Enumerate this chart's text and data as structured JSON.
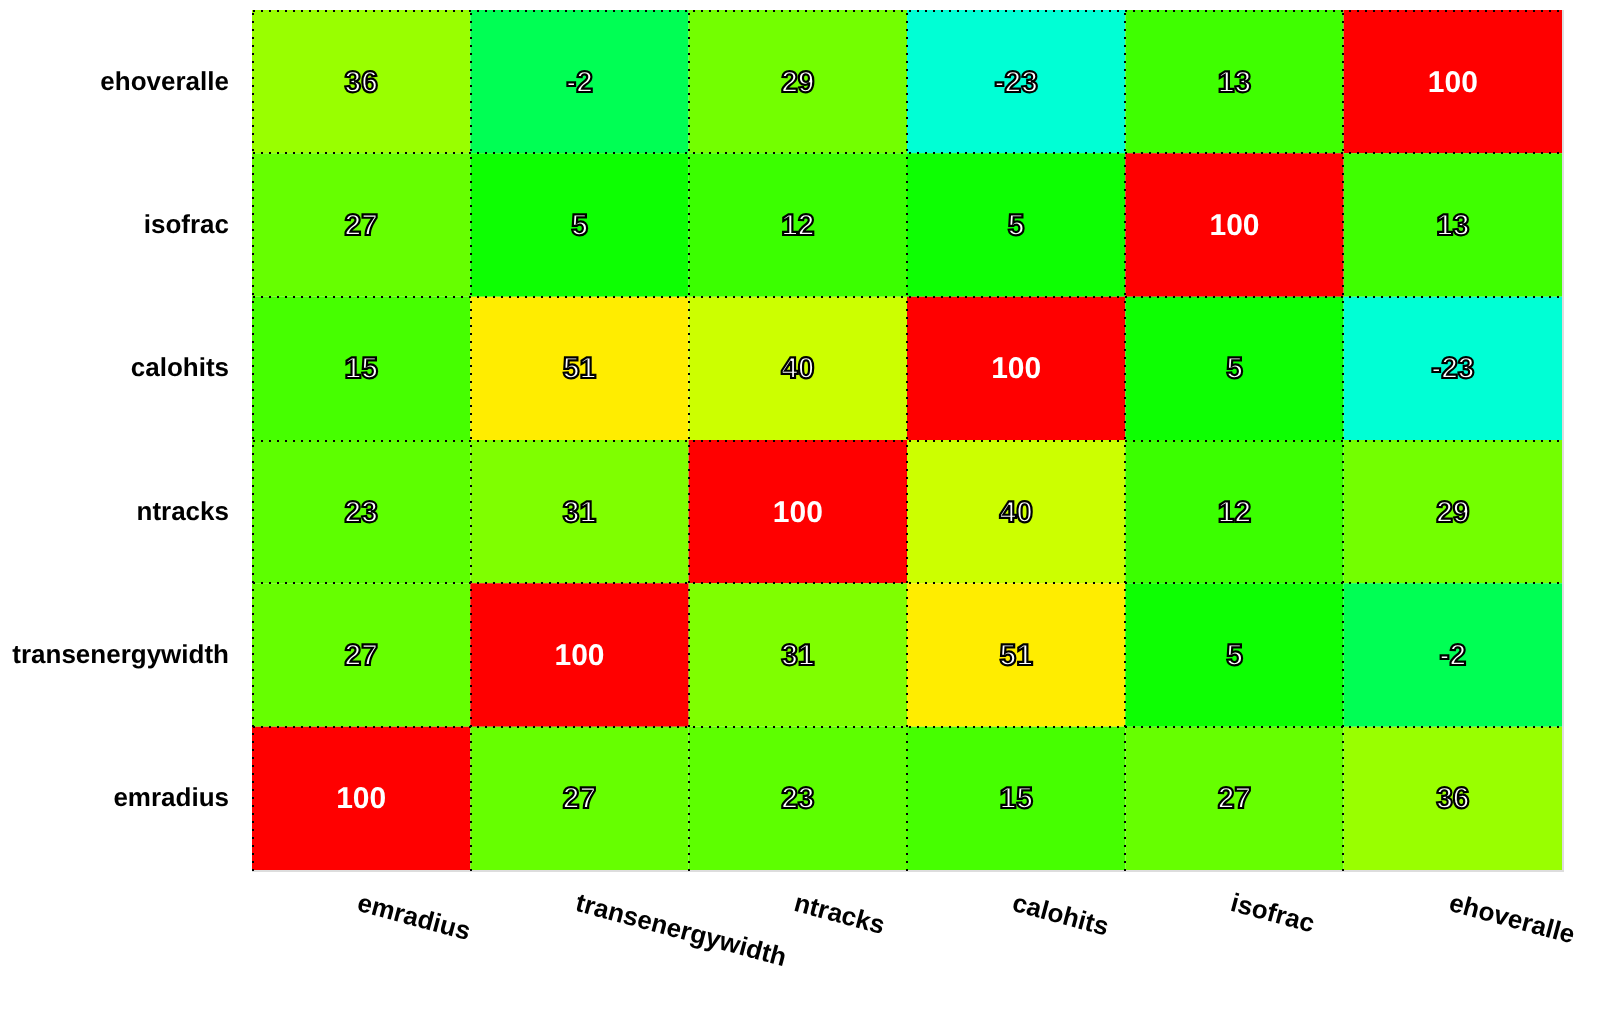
{
  "chart_data": {
    "type": "heatmap",
    "categories": [
      "emradius",
      "transenergywidth",
      "ntracks",
      "calohits",
      "isofrac",
      "ehoveralle"
    ],
    "y_categories": [
      "ehoveralle",
      "isofrac",
      "calohits",
      "ntracks",
      "transenergywidth",
      "emradius"
    ],
    "cells": [
      [
        36,
        -2,
        29,
        -23,
        13,
        100
      ],
      [
        27,
        5,
        12,
        5,
        100,
        13
      ],
      [
        15,
        51,
        40,
        100,
        5,
        -23
      ],
      [
        23,
        31,
        100,
        40,
        12,
        29
      ],
      [
        27,
        100,
        31,
        51,
        5,
        -2
      ],
      [
        100,
        27,
        23,
        15,
        27,
        36
      ]
    ],
    "data_labels": true,
    "grid": true
  }
}
